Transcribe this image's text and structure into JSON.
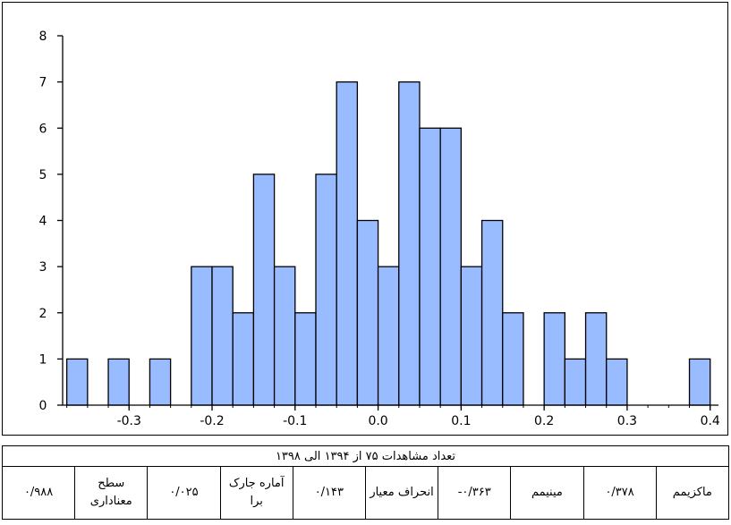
{
  "chart_data": {
    "type": "bar",
    "subtype": "histogram",
    "bar_color": "#99bbff",
    "bar_edge": "#000000",
    "bin_width": 0.025,
    "x_start": -0.375,
    "xlim": [
      -0.38,
      0.41
    ],
    "ylim": [
      0,
      8
    ],
    "x_ticks": [
      -0.3,
      -0.2,
      -0.1,
      0.0,
      0.1,
      0.2,
      0.3,
      0.4
    ],
    "x_tick_labels": [
      "-0.3",
      "-0.2",
      "-0.1",
      "0.0",
      "0.1",
      "0.2",
      "0.3",
      "0.4"
    ],
    "y_ticks": [
      0,
      1,
      2,
      3,
      4,
      5,
      6,
      7,
      8
    ],
    "y_tick_labels": [
      "0",
      "1",
      "2",
      "3",
      "4",
      "5",
      "6",
      "7",
      "8"
    ],
    "counts": [
      1,
      0,
      1,
      0,
      1,
      0,
      3,
      3,
      2,
      5,
      3,
      2,
      5,
      7,
      4,
      3,
      7,
      6,
      6,
      3,
      4,
      2,
      0,
      2,
      1,
      2,
      1,
      0,
      0,
      0,
      1
    ],
    "grid": false,
    "legend": "none"
  },
  "table": {
    "caption": "تعداد مشاهدات ۷۵ از ۱۳۹۴ الی ۱۳۹۸",
    "cells": [
      {
        "label": "ماکزیمم",
        "value": "۰/۳۷۸"
      },
      {
        "label": "مینیمم",
        "value": "-۰/۳۶۳"
      },
      {
        "label": "انحراف معیار",
        "value": "۰/۱۴۳"
      },
      {
        "label": "آماره جارک برا",
        "value": "۰/۰۲۵"
      },
      {
        "label": "سطح معناداری",
        "value": "۰/۹۸۸"
      }
    ]
  }
}
